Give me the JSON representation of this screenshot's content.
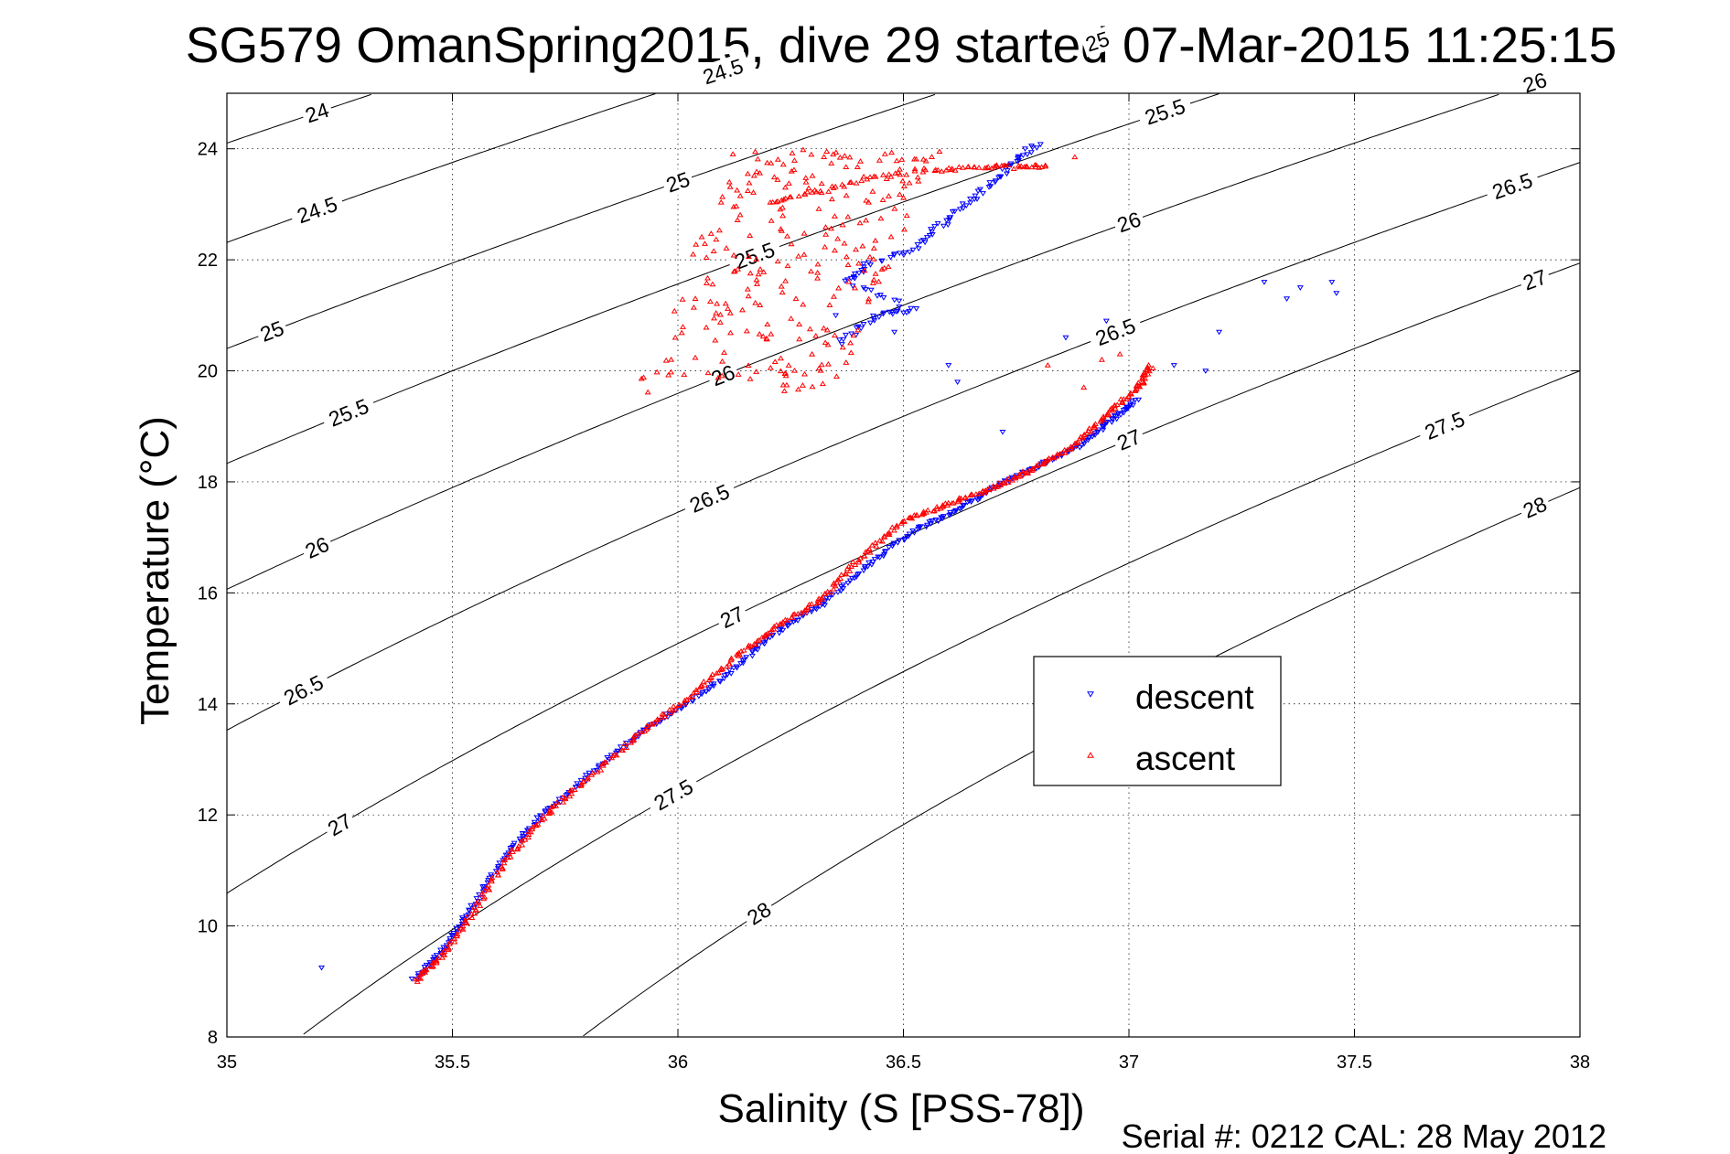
{
  "chart_data": {
    "type": "scatter",
    "title": "SG579 OmanSpring2015, dive 29 started 07-Mar-2015 11:25:15",
    "xlabel": "Salinity (S [PSS-78])",
    "ylabel": "Temperature (°C)",
    "xlim": [
      35,
      38
    ],
    "ylim": [
      8,
      25
    ],
    "xticks": [
      "35",
      "35.5",
      "36",
      "36.5",
      "37",
      "37.5",
      "38"
    ],
    "yticks": [
      "8",
      "10",
      "12",
      "14",
      "16",
      "18",
      "20",
      "22",
      "24"
    ],
    "grid": true,
    "legend_position": "center-right",
    "footer": "Serial #: 0212  CAL: 28 May 2012",
    "isopycnals": [
      {
        "sigma": 24.0,
        "labels": [
          {
            "text": "24",
            "s": 35.2
          }
        ]
      },
      {
        "sigma": 24.5,
        "labels": [
          {
            "text": "24.5",
            "s": 35.2
          },
          {
            "text": "24.5",
            "s": 36.1
          }
        ]
      },
      {
        "sigma": 25.0,
        "labels": [
          {
            "text": "25",
            "s": 35.1
          },
          {
            "text": "25",
            "s": 36.0
          },
          {
            "text": "25",
            "s": 36.93
          }
        ]
      },
      {
        "sigma": 25.5,
        "labels": [
          {
            "text": "25.5",
            "s": 35.27
          },
          {
            "text": "25.5",
            "s": 36.17
          },
          {
            "text": "25.5",
            "s": 37.08
          }
        ]
      },
      {
        "sigma": 26.0,
        "labels": [
          {
            "text": "26",
            "s": 35.2
          },
          {
            "text": "26",
            "s": 36.1
          },
          {
            "text": "26",
            "s": 37.0
          },
          {
            "text": "26",
            "s": 37.9
          }
        ]
      },
      {
        "sigma": 26.5,
        "labels": [
          {
            "text": "26.5",
            "s": 35.17
          },
          {
            "text": "26.5",
            "s": 36.07
          },
          {
            "text": "26.5",
            "s": 36.97
          },
          {
            "text": "26.5",
            "s": 37.85
          }
        ]
      },
      {
        "sigma": 27.0,
        "labels": [
          {
            "text": "27",
            "s": 35.25
          },
          {
            "text": "27",
            "s": 36.12
          },
          {
            "text": "27",
            "s": 37.0
          },
          {
            "text": "27",
            "s": 37.9
          }
        ]
      },
      {
        "sigma": 27.5,
        "labels": [
          {
            "text": "27.5",
            "s": 35.99
          },
          {
            "text": "27.5",
            "s": 37.7
          }
        ]
      },
      {
        "sigma": 28.0,
        "labels": [
          {
            "text": "28",
            "s": 36.18
          },
          {
            "text": "28",
            "s": 37.9
          }
        ]
      }
    ],
    "series": [
      {
        "name": "descent",
        "color": "#0000ff",
        "marker": "triangle-down",
        "profile": [
          [
            35.42,
            9.05
          ],
          [
            35.48,
            9.6
          ],
          [
            35.55,
            10.4
          ],
          [
            35.62,
            11.3
          ],
          [
            35.7,
            12.0
          ],
          [
            35.8,
            12.7
          ],
          [
            35.92,
            13.5
          ],
          [
            36.02,
            14.0
          ],
          [
            36.12,
            14.6
          ],
          [
            36.22,
            15.3
          ],
          [
            36.32,
            15.8
          ],
          [
            36.42,
            16.5
          ],
          [
            36.52,
            17.1
          ],
          [
            36.62,
            17.5
          ],
          [
            36.7,
            17.9
          ],
          [
            36.8,
            18.3
          ],
          [
            36.9,
            18.7
          ],
          [
            36.96,
            19.1
          ],
          [
            37.02,
            19.5
          ]
        ],
        "upper": [
          [
            36.36,
            20.5
          ],
          [
            36.44,
            21.0
          ],
          [
            36.52,
            21.1
          ],
          [
            36.38,
            21.6
          ],
          [
            36.42,
            21.9
          ],
          [
            36.52,
            22.2
          ],
          [
            36.58,
            22.6
          ],
          [
            36.64,
            23.0
          ],
          [
            36.7,
            23.4
          ],
          [
            36.75,
            23.8
          ],
          [
            36.8,
            24.1
          ]
        ],
        "outliers": [
          [
            35.21,
            9.25
          ],
          [
            35.41,
            9.05
          ],
          [
            37.3,
            21.6
          ],
          [
            37.35,
            21.3
          ],
          [
            37.38,
            21.5
          ],
          [
            37.46,
            21.4
          ],
          [
            37.45,
            21.6
          ],
          [
            37.2,
            20.7
          ],
          [
            37.17,
            20.0
          ],
          [
            37.1,
            20.1
          ],
          [
            36.95,
            20.9
          ],
          [
            36.86,
            20.6
          ],
          [
            36.6,
            20.1
          ],
          [
            36.48,
            20.7
          ],
          [
            36.4,
            20.8
          ],
          [
            36.35,
            21.0
          ],
          [
            36.62,
            19.8
          ],
          [
            36.72,
            18.9
          ]
        ]
      },
      {
        "name": "ascent",
        "color": "#ff0000",
        "marker": "triangle-up",
        "profile": [
          [
            35.42,
            9.0
          ],
          [
            35.48,
            9.5
          ],
          [
            35.55,
            10.3
          ],
          [
            35.62,
            11.2
          ],
          [
            35.7,
            11.95
          ],
          [
            35.8,
            12.65
          ],
          [
            35.92,
            13.5
          ],
          [
            36.02,
            14.1
          ],
          [
            36.12,
            14.8
          ],
          [
            36.22,
            15.4
          ],
          [
            36.32,
            15.9
          ],
          [
            36.4,
            16.6
          ],
          [
            36.5,
            17.3
          ],
          [
            36.6,
            17.6
          ],
          [
            36.7,
            17.9
          ],
          [
            36.78,
            18.2
          ],
          [
            36.87,
            18.6
          ],
          [
            36.95,
            19.2
          ],
          [
            37.02,
            19.7
          ],
          [
            37.05,
            20.1
          ]
        ],
        "upper": [
          [
            36.55,
            23.6
          ],
          [
            36.65,
            23.65
          ],
          [
            36.75,
            23.7
          ],
          [
            36.82,
            23.7
          ],
          [
            36.5,
            23.6
          ],
          [
            36.4,
            23.4
          ],
          [
            36.3,
            23.2
          ],
          [
            36.2,
            23.0
          ]
        ],
        "scatter_bounds": [
          36.05,
          36.75,
          19.6,
          24.0
        ],
        "outliers": [
          [
            36.33,
            23.95
          ],
          [
            36.58,
            23.95
          ],
          [
            36.88,
            23.85
          ],
          [
            36.98,
            20.3
          ],
          [
            36.94,
            20.2
          ],
          [
            36.82,
            20.1
          ],
          [
            36.9,
            19.7
          ]
        ]
      }
    ]
  }
}
